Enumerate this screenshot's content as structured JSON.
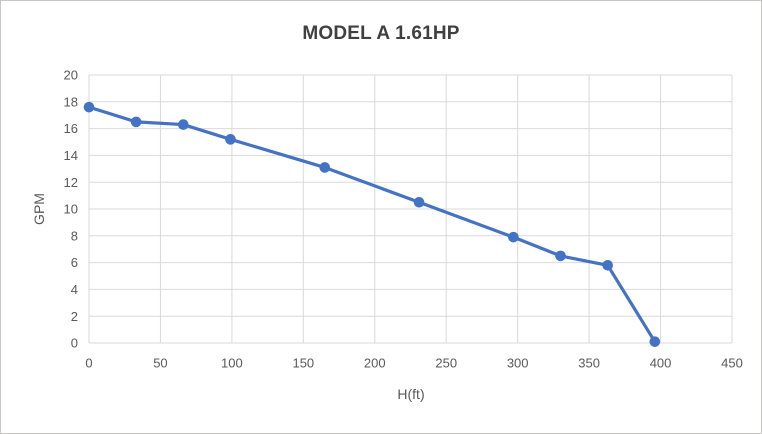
{
  "window": {
    "background": "#ffffff",
    "border_color": "#c9c7c5"
  },
  "chart_data": {
    "type": "line",
    "title": "MODEL A 1.61HP",
    "xlabel": "H(ft)",
    "ylabel": "GPM",
    "xlim": [
      0,
      450
    ],
    "ylim": [
      0,
      20
    ],
    "x_ticks": [
      0,
      50,
      100,
      150,
      200,
      250,
      300,
      350,
      400,
      450
    ],
    "y_ticks": [
      0,
      2,
      4,
      6,
      8,
      10,
      12,
      14,
      16,
      18,
      20
    ],
    "grid": true,
    "legend": "none",
    "series": [
      {
        "name": "MODEL A 1.61HP",
        "color": "#4472C4",
        "marker": "circle",
        "points": [
          {
            "x": 0,
            "y": 17.6
          },
          {
            "x": 33,
            "y": 16.5
          },
          {
            "x": 66,
            "y": 16.3
          },
          {
            "x": 99,
            "y": 15.2
          },
          {
            "x": 165,
            "y": 13.1
          },
          {
            "x": 231,
            "y": 10.5
          },
          {
            "x": 297,
            "y": 7.9
          },
          {
            "x": 330,
            "y": 6.5
          },
          {
            "x": 363,
            "y": 5.8
          },
          {
            "x": 396,
            "y": 0.1
          }
        ]
      }
    ],
    "style": {
      "grid_color": "#d9d9d9",
      "tick_label_color": "#595959",
      "axis_title_color": "#595959",
      "title_color": "#404040",
      "line_width": 3.2,
      "marker_radius": 5.3
    }
  }
}
